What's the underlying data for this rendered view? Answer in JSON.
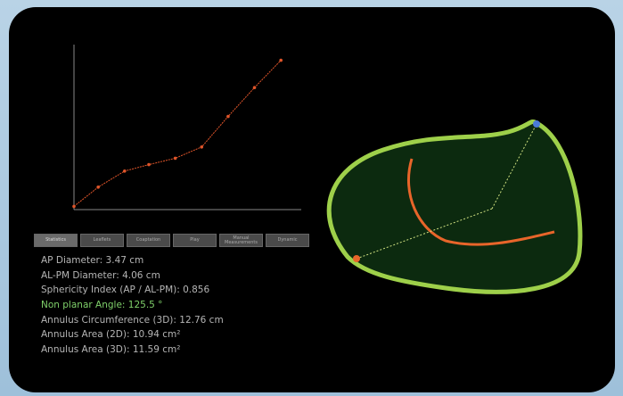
{
  "chart_data": {
    "type": "line",
    "color": "#e0552a",
    "x": [
      0,
      11,
      23,
      34,
      46,
      58,
      70,
      82,
      94
    ],
    "values": [
      2,
      14,
      24,
      28,
      32,
      39,
      58,
      76,
      93
    ],
    "xlim": [
      0,
      100
    ],
    "ylim": [
      0,
      100
    ]
  },
  "tabs": [
    "Statistics",
    "Leaflets",
    "Coaptation",
    "Play",
    "Manual Measurements",
    "Dynamic"
  ],
  "measurements": [
    "AP Diameter: 3.47 cm",
    "AL-PM Diameter: 4.06 cm",
    "Sphericity Index (AP / AL-PM): 0.856",
    "Non planar Angle: 125.5 °",
    "Annulus Circumference (3D): 12.76 cm",
    "Annulus Area (2D): 10.94 cm²",
    "Annulus Area (3D): 11.59 cm²"
  ]
}
